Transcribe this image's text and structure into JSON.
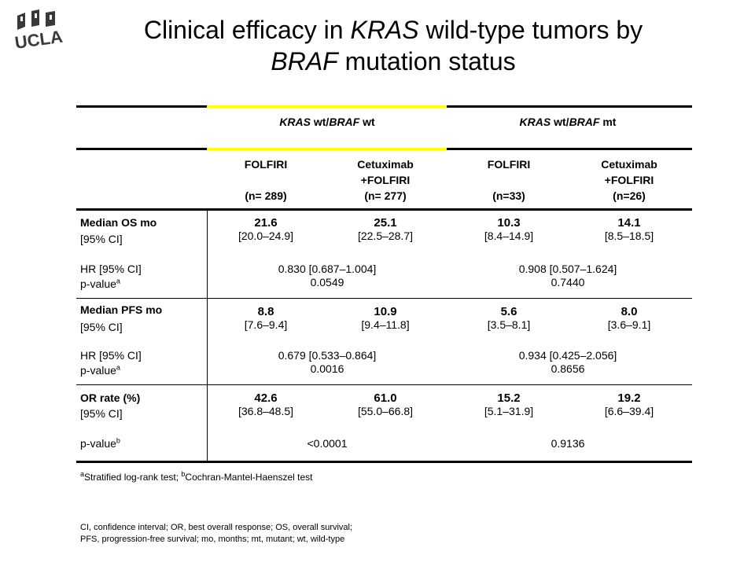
{
  "header": {
    "logo_text": "UCLA",
    "title_part1": "Clinical efficacy in ",
    "title_kras": "KRAS",
    "title_part2": " wild-type tumors by",
    "title_braf": "BRAF",
    "title_part3": " mutation status"
  },
  "table": {
    "group_wt": {
      "kras": "KRAS",
      "mid": " wt/",
      "braf": "BRAF",
      "tail": " wt"
    },
    "group_mt": {
      "kras": "KRAS",
      "mid": " wt/",
      "braf": "BRAF",
      "tail": " mt"
    },
    "arms": {
      "wt_folfiri_name": "FOLFIRI",
      "wt_folfiri_n": "(n= 289)",
      "wt_cetux_name1": "Cetuximab",
      "wt_cetux_name2": "+FOLFIRI",
      "wt_cetux_n": "(n= 277)",
      "mt_folfiri_name": "FOLFIRI",
      "mt_folfiri_n": "(n=33)",
      "mt_cetux_name1": "Cetuximab",
      "mt_cetux_name2": "+FOLFIRI",
      "mt_cetux_n": "(n=26)"
    },
    "os": {
      "label": "Median OS mo",
      "ci_label": "[95% CI]",
      "wt_folfiri": "21.6",
      "wt_folfiri_ci": "[20.0–24.9]",
      "wt_cetux": "25.1",
      "wt_cetux_ci": "[22.5–28.7]",
      "mt_folfiri": "10.3",
      "mt_folfiri_ci": "[8.4–14.9]",
      "mt_cetux": "14.1",
      "mt_cetux_ci": "[8.5–18.5]",
      "hr_label": "HR [95% CI]",
      "p_label": "p-value",
      "p_sup": "a",
      "wt_hr": "0.830 [0.687–1.004]",
      "wt_p": "0.0549",
      "mt_hr": "0.908 [0.507–1.624]",
      "mt_p": "0.7440"
    },
    "pfs": {
      "label": "Median PFS mo",
      "ci_label": "[95% CI]",
      "wt_folfiri": "8.8",
      "wt_folfiri_ci": "[7.6–9.4]",
      "wt_cetux": "10.9",
      "wt_cetux_ci": "[9.4–11.8]",
      "mt_folfiri": "5.6",
      "mt_folfiri_ci": "[3.5–8.1]",
      "mt_cetux": "8.0",
      "mt_cetux_ci": "[3.6–9.1]",
      "hr_label": "HR [95% CI]",
      "p_label": "p-value",
      "p_sup": "a",
      "wt_hr": "0.679 [0.533–0.864]",
      "wt_p": "0.0016",
      "mt_hr": "0.934 [0.425–2.056]",
      "mt_p": "0.8656"
    },
    "orr": {
      "label": "OR rate (%)",
      "ci_label": "[95% CI]",
      "wt_folfiri": "42.6",
      "wt_folfiri_ci": "[36.8–48.5]",
      "wt_cetux": "61.0",
      "wt_cetux_ci": "[55.0–66.8]",
      "mt_folfiri": "15.2",
      "mt_folfiri_ci": "[5.1–31.9]",
      "mt_cetux": "19.2",
      "mt_cetux_ci": "[6.6–39.4]",
      "p_label": "p-value",
      "p_sup": "b",
      "wt_p": "<0.0001",
      "mt_p": "0.9136"
    }
  },
  "footnote": {
    "sup_a": "a",
    "text_a": "Stratified log-rank test; ",
    "sup_b": "b",
    "text_b": "Cochran-Mantel-Haenszel test"
  },
  "abbreviations": {
    "line1": "CI, confidence interval; OR, best overall response; OS, overall survival;",
    "line2": "PFS, progression-free survival; mo, months; mt, mutant; wt, wild-type"
  }
}
